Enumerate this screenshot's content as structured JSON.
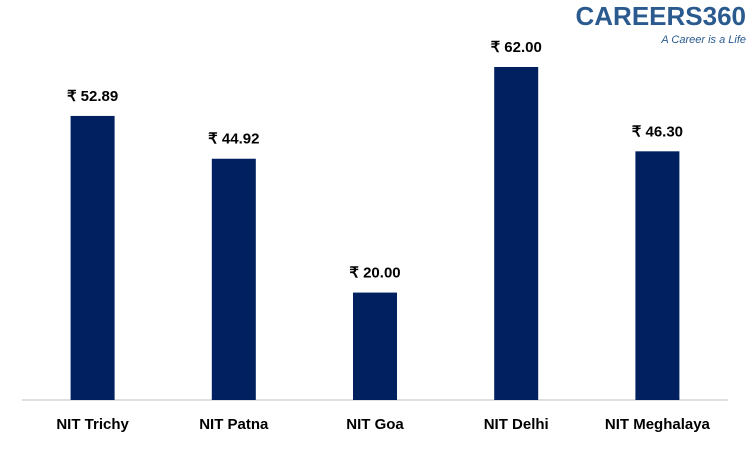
{
  "chart_data": {
    "type": "bar",
    "categories": [
      "NIT Trichy",
      "NIT Patna",
      "NIT Goa",
      "NIT Delhi",
      "NIT Meghalaya"
    ],
    "values": [
      52.89,
      44.92,
      20.0,
      62.0,
      46.3
    ],
    "value_labels": [
      "₹ 52.89",
      "₹ 44.92",
      "₹ 20.00",
      "₹ 62.00",
      "₹ 46.30"
    ],
    "color": "#002060"
  },
  "logo": {
    "brand": "CAREERS360",
    "tagline": "A Career is a Life"
  }
}
